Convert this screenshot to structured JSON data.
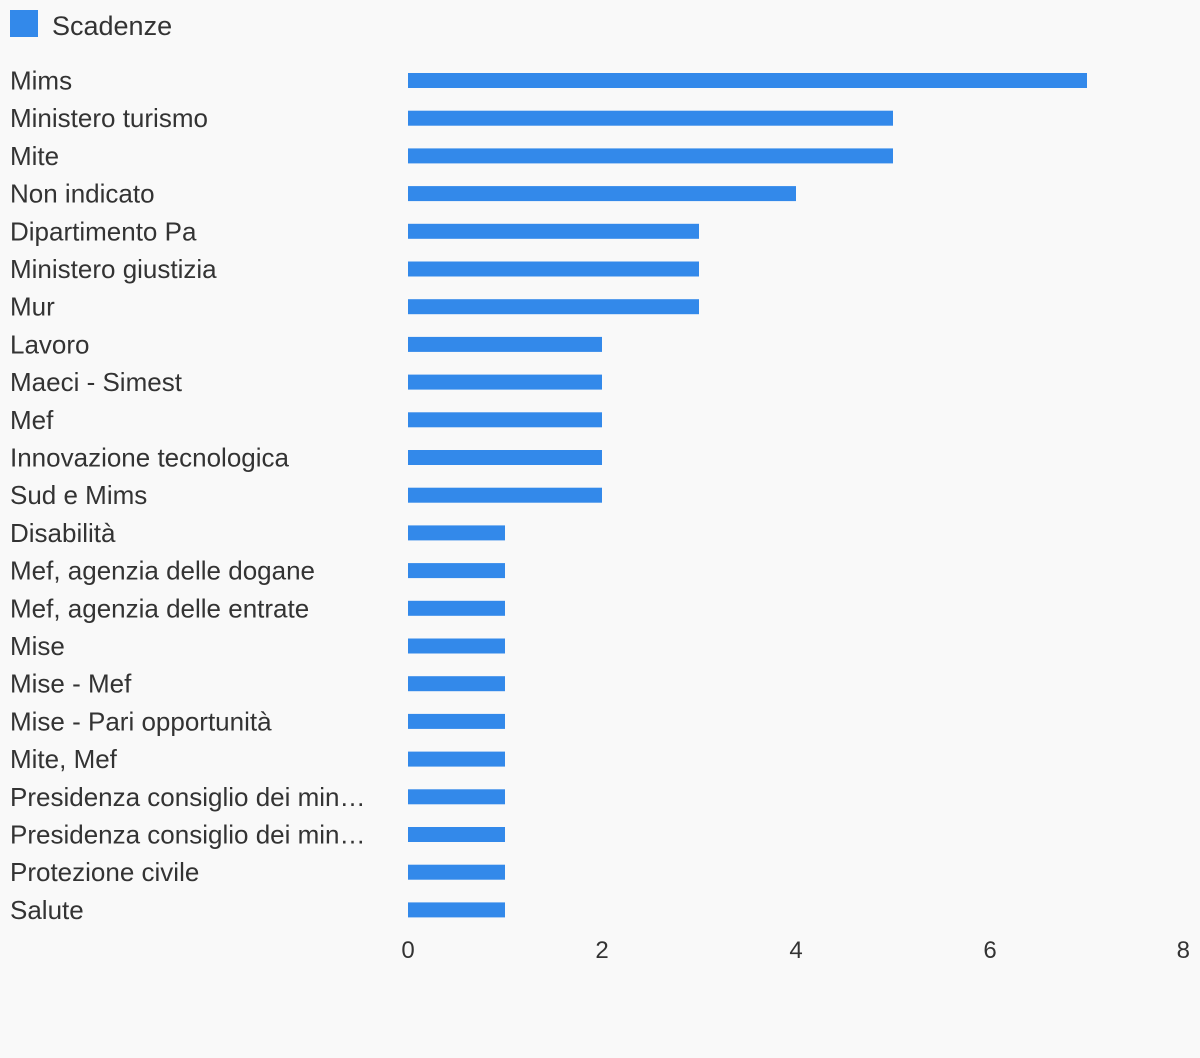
{
  "chart_data": {
    "type": "bar",
    "orientation": "horizontal",
    "legend": {
      "position": "top-left",
      "entries": [
        "Scadenze"
      ]
    },
    "series": [
      {
        "name": "Scadenze",
        "color": "#3389ea",
        "values": [
          7,
          5,
          5,
          4,
          3,
          3,
          3,
          2,
          2,
          2,
          2,
          2,
          1,
          1,
          1,
          1,
          1,
          1,
          1,
          1,
          1,
          1,
          1
        ]
      }
    ],
    "categories": [
      "Mims",
      "Ministero turismo",
      "Mite",
      "Non indicato",
      "Dipartimento Pa",
      "Ministero giustizia",
      "Mur",
      "Lavoro",
      "Maeci - Simest",
      "Mef",
      "Innovazione tecnologica",
      "Sud e Mims",
      "Disabilità",
      "Mef, agenzia delle dogane",
      "Mef, agenzia delle entrate",
      "Mise",
      "Mise - Mef",
      "Mise - Pari opportunità",
      "Mite, Mef",
      "Presidenza consiglio dei min…",
      "Presidenza consiglio dei min…",
      "Protezione civile",
      "Salute"
    ],
    "xlim": [
      0,
      8
    ],
    "xticks": [
      0,
      2,
      4,
      6,
      8
    ],
    "grid": false,
    "title": "",
    "xlabel": "",
    "ylabel": ""
  }
}
